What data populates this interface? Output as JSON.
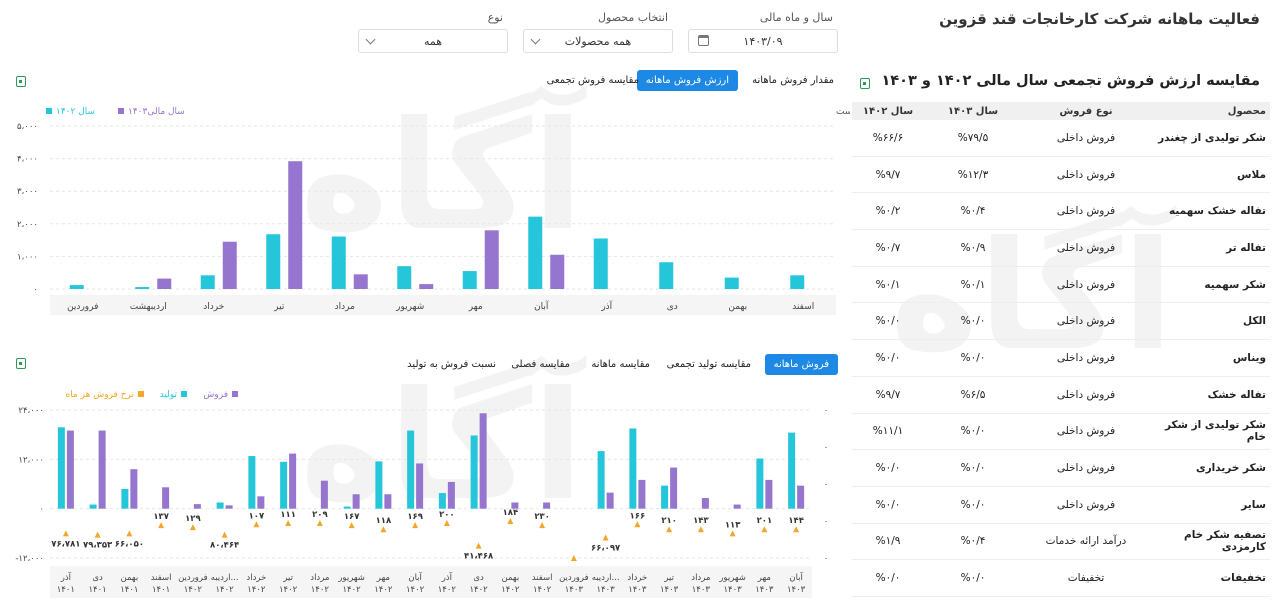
{
  "page": {
    "title": "فعالیت ماهانه شرکت کارخانجات قند قزوین"
  },
  "filters": [
    {
      "label": "سال و ماه مالی",
      "value": "۱۴۰۳/۰۹",
      "icon": "calendar-icon"
    },
    {
      "label": "انتخاب محصول",
      "value": "همه محصولات",
      "icon": "chevron-down-icon"
    },
    {
      "label": "نوع",
      "value": "همه",
      "icon": "chevron-down-icon"
    }
  ],
  "table": {
    "title": "مقایسه ارزش فروش تجمعی سال مالی ۱۴۰۲ و ۱۴۰۳",
    "headers": [
      "محصول",
      "نوع فروش",
      "سال ۱۴۰۳",
      "سال ۱۴۰۲"
    ],
    "rows": [
      [
        "شکر تولیدی از چغندر",
        "فروش داخلی",
        "%۷۹/۵",
        "%۶۶/۶"
      ],
      [
        "ملاس",
        "فروش داخلی",
        "%۱۲/۳",
        "%۹/۷"
      ],
      [
        "تفاله خشک سهمیه",
        "فروش داخلی",
        "%۰/۴",
        "%۰/۲"
      ],
      [
        "تفاله تر",
        "فروش داخلی",
        "%۰/۹",
        "%۰/۷"
      ],
      [
        "شکر سهمیه",
        "فروش داخلی",
        "%۰/۱",
        "%۰/۱"
      ],
      [
        "الکل",
        "فروش داخلی",
        "%۰/۰",
        "%۰/۰"
      ],
      [
        "ویناس",
        "فروش داخلی",
        "%۰/۰",
        "%۰/۰"
      ],
      [
        "تفاله خشک",
        "فروش داخلی",
        "%۶/۵",
        "%۹/۷"
      ],
      [
        "شکر تولیدی از شکر خام",
        "فروش داخلی",
        "%۰/۰",
        "%۱۱/۱"
      ],
      [
        "شکر خریداری",
        "فروش داخلی",
        "%۰/۰",
        "%۰/۰"
      ],
      [
        "سایر",
        "فروش داخلی",
        "%۰/۰",
        "%۰/۰"
      ],
      [
        "تصفیه شکر خام کارمزدی",
        "درآمد ارائه خدمات",
        "%۰/۴",
        "%۱/۹"
      ],
      [
        "تخفیفات",
        "تخفیفات",
        "%۰/۰",
        "%۰/۰"
      ]
    ]
  },
  "top_tabs": [
    "مقدار فروش ماهانه",
    "ارزش فروش ماهانه",
    "مقایسه فروش تجمعی"
  ],
  "bottom_tabs": [
    "فروش ماهانه",
    "مقایسه تولید تجمعی",
    "مقایسه ماهانه",
    "مقایسه فصلی",
    "نسبت فروش به تولید"
  ],
  "watermark": {
    "text": "آگاه"
  },
  "colors": {
    "cyan": "#26c6da",
    "purple": "#9575cd",
    "orange": "#f4a62a",
    "accent": "#1e88e5"
  },
  "chart_data": [
    {
      "type": "bar",
      "note": "اعداد بر اساس میلیارد ریال است",
      "legend": [
        "سال ۱۴۰۲",
        "سال مالی۱۴۰۳"
      ],
      "categories": [
        "اسفند",
        "بهمن",
        "دی",
        "آذر",
        "آبان",
        "مهر",
        "شهریور",
        "مرداد",
        "تیر",
        "خرداد",
        "اردیبهشت",
        "فروردین"
      ],
      "series": [
        {
          "name": "سال ۱۴۰۲",
          "values": [
            420,
            350,
            820,
            1550,
            2220,
            550,
            700,
            1610,
            1680,
            420,
            60,
            120
          ]
        },
        {
          "name": "سال مالی۱۴۰۳",
          "values": [
            null,
            null,
            null,
            null,
            1050,
            1800,
            150,
            450,
            3920,
            1450,
            320,
            null
          ]
        }
      ],
      "yticks": [
        "۵،۰۰۰",
        "۴،۰۰۰",
        "۳،۰۰۰",
        "۲،۰۰۰",
        "۱،۰۰۰",
        "۰"
      ],
      "ylim": [
        0,
        5000
      ]
    },
    {
      "type": "bar",
      "legend": [
        "فروش",
        "تولید",
        "نرخ فروش هر ماه"
      ],
      "categories": [
        [
          "آبان",
          "۱۴۰۳"
        ],
        [
          "مهر",
          "۱۴۰۳"
        ],
        [
          "شهریور",
          "۱۴۰۳"
        ],
        [
          "مرداد",
          "۱۴۰۳"
        ],
        [
          "تیر",
          "۱۴۰۳"
        ],
        [
          "خرداد",
          "۱۴۰۳"
        ],
        [
          "اردیبه...",
          "۱۴۰۳"
        ],
        [
          "فروردین",
          "۱۴۰۳"
        ],
        [
          "اسفند",
          "۱۴۰۲"
        ],
        [
          "بهمن",
          "۱۴۰۲"
        ],
        [
          "دی",
          "۱۴۰۲"
        ],
        [
          "آذر",
          "۱۴۰۲"
        ],
        [
          "آبان",
          "۱۴۰۲"
        ],
        [
          "مهر",
          "۱۴۰۲"
        ],
        [
          "شهریور",
          "۱۴۰۲"
        ],
        [
          "مرداد",
          "۱۴۰۲"
        ],
        [
          "تیر",
          "۱۴۰۲"
        ],
        [
          "خرداد",
          "۱۴۰۲"
        ],
        [
          "اردیبه...",
          "۱۴۰۲"
        ],
        [
          "فروردین",
          "۱۴۰۲"
        ],
        [
          "اسفند",
          "۱۴۰۱"
        ],
        [
          "بهمن",
          "۱۴۰۱"
        ],
        [
          "دی",
          "۱۴۰۱"
        ],
        [
          "آذر",
          "۱۴۰۱"
        ]
      ],
      "series": [
        {
          "name": "تولید",
          "values": [
            18500,
            12200,
            0,
            0,
            5600,
            19500,
            14000,
            0,
            0,
            0,
            17800,
            3800,
            19000,
            11500,
            500,
            0,
            11400,
            12800,
            1500,
            0,
            0,
            4800,
            1000,
            19800
          ]
        },
        {
          "name": "فروش",
          "values": [
            5600,
            7000,
            1000,
            2600,
            10000,
            7000,
            3900,
            0,
            1500,
            1500,
            23200,
            6500,
            11000,
            3500,
            3500,
            6800,
            13400,
            3000,
            800,
            1100,
            5200,
            9600,
            19000,
            19000
          ]
        },
        {
          "name": "نرخ فروش هر ماه",
          "values": [
            -5000,
            -5000,
            -6000,
            -5000,
            -5000,
            -3800,
            -7000,
            -12000,
            -4000,
            -3000,
            -9000,
            -3500,
            -4000,
            -5000,
            -4000,
            -3500,
            -3500,
            -3800,
            -6300,
            -4500,
            -4000,
            -6000,
            -6300,
            -6000
          ]
        }
      ],
      "rate_labels": [
        "۱۴۴",
        "۲۰۱",
        "۱۱۳",
        "۱۴۳",
        "۲۱۰",
        "۱۶۶",
        "۶۶،۰۹۷",
        "",
        "۲۳۰",
        "۱۸۴",
        "۴۱،۴۶۸",
        "۲۰۰",
        "۱۶۹",
        "۱۱۸",
        "۱۶۷",
        "۲۰۹",
        "۱۱۱",
        "۱۰۷",
        "۸۰،۴۶۴",
        "۱۲۹",
        "۱۳۷",
        "۶۶،۰۵۰",
        "۷۹،۳۵۳",
        "۷۶،۷۸۱"
      ],
      "yticks": [
        "۲۴،۰۰۰",
        "۱۲،۰۰۰",
        "۰",
        "-۱۲،۰۰۰"
      ],
      "right_ticks": [
        "۰",
        "۰",
        "۰",
        "۰",
        "۰"
      ],
      "ylim": [
        -12000,
        24000
      ]
    }
  ]
}
